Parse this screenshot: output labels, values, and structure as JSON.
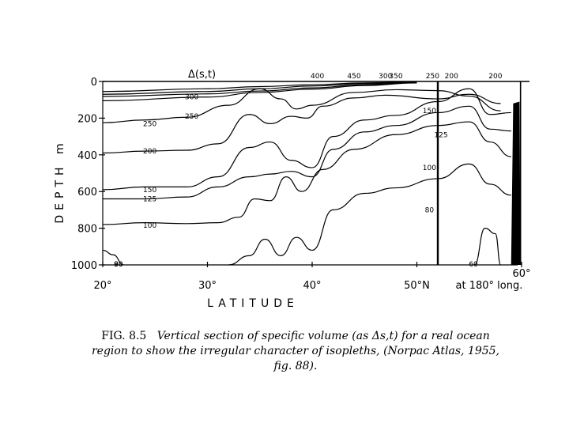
{
  "chart_data": {
    "type": "line",
    "title": "",
    "xlabel": "LATITUDE",
    "ylabel": "DEPTH m",
    "x_ticks": [
      "20°",
      "30°",
      "40°",
      "50°N",
      "60°"
    ],
    "x_tick_suffix": "at 180° long.",
    "y_ticks": [
      "0",
      "200",
      "400",
      "600",
      "800",
      "1000"
    ],
    "xlim": [
      20,
      60
    ],
    "ylim": [
      0,
      1000
    ],
    "y_inverted": true,
    "grid": false,
    "parameter_label": "Δ(s,t)",
    "isopleths": [
      {
        "name": "450",
        "x": [
          20,
          30,
          35,
          40,
          45,
          50
        ],
        "y": [
          55,
          40,
          28,
          18,
          8,
          2
        ]
      },
      {
        "name": "400",
        "x": [
          20,
          30,
          35,
          40,
          45,
          50
        ],
        "y": [
          70,
          55,
          40,
          25,
          12,
          4
        ]
      },
      {
        "name": "350",
        "x": [
          20,
          30,
          35,
          40,
          45,
          50
        ],
        "y": [
          82,
          68,
          52,
          35,
          18,
          6
        ]
      },
      {
        "name": "300",
        "x": [
          20,
          30,
          35,
          40,
          45,
          50
        ],
        "y": [
          105,
          85,
          60,
          42,
          22,
          8
        ]
      },
      {
        "name": "250",
        "x": [
          20,
          24,
          28,
          32,
          35,
          37,
          38.5,
          40,
          44,
          48,
          52,
          55,
          58
        ],
        "y": [
          225,
          210,
          195,
          130,
          40,
          95,
          150,
          130,
          60,
          45,
          50,
          80,
          160
        ]
      },
      {
        "name": "200",
        "x": [
          20,
          24,
          28,
          31,
          34,
          36,
          38,
          39.5,
          41,
          44,
          47,
          52,
          55,
          58
        ],
        "y": [
          390,
          380,
          375,
          340,
          180,
          230,
          190,
          200,
          135,
          90,
          75,
          95,
          70,
          120
        ]
      },
      {
        "name": "150",
        "x": [
          20,
          24,
          28,
          31,
          34,
          36,
          38,
          40,
          42,
          45,
          48,
          52,
          55,
          57,
          59
        ],
        "y": [
          590,
          575,
          575,
          520,
          360,
          330,
          430,
          470,
          300,
          210,
          185,
          110,
          40,
          180,
          170
        ]
      },
      {
        "name": "125",
        "x": [
          20,
          24,
          28,
          31,
          34,
          36,
          38,
          40,
          42,
          45,
          48,
          52,
          55,
          57,
          59
        ],
        "y": [
          640,
          640,
          630,
          575,
          520,
          505,
          490,
          520,
          370,
          275,
          240,
          170,
          135,
          260,
          270
        ]
      },
      {
        "name": "100",
        "x": [
          20,
          24,
          28,
          31,
          33,
          34.5,
          36,
          37.5,
          39,
          41,
          44,
          48,
          52,
          55,
          57,
          59
        ],
        "y": [
          780,
          770,
          775,
          770,
          740,
          640,
          650,
          520,
          600,
          480,
          370,
          290,
          240,
          220,
          330,
          410
        ]
      },
      {
        "name": "80",
        "x": [
          32,
          34,
          35.5,
          37,
          38.5,
          40,
          42,
          45,
          48,
          52,
          55,
          57,
          59
        ],
        "y": [
          1000,
          950,
          860,
          950,
          850,
          920,
          700,
          610,
          580,
          530,
          450,
          560,
          620
        ]
      },
      {
        "name": "60",
        "x": [
          55.5,
          56.5,
          57.5,
          58
        ],
        "y": [
          1000,
          800,
          830,
          1000
        ]
      },
      {
        "name": "90",
        "x": [
          20,
          21,
          22
        ],
        "y": [
          920,
          945,
          1000
        ]
      }
    ]
  },
  "caption": {
    "fig_label": "FIG. 8.5",
    "text": "Vertical section of specific volume (as Δs,t) for a real ocean region to show the irregular character of isopleths, (Norpac Atlas, 1955, fig. 88)."
  }
}
